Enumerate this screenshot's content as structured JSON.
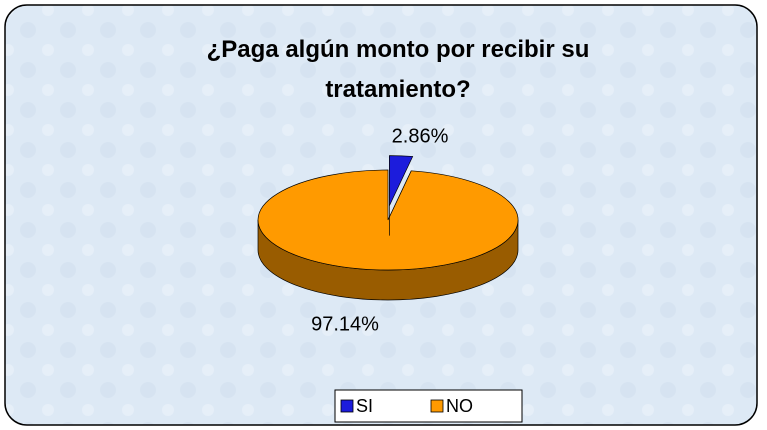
{
  "chart_data": {
    "type": "pie3d",
    "title": "¿Paga algún monto por recibir su tratamiento?",
    "categories": [
      "SI",
      "NO"
    ],
    "values": [
      2.86,
      97.14
    ],
    "value_labels": [
      "2.86%",
      "97.14%"
    ],
    "colors": [
      "#1c1cdc",
      "#ff9a00"
    ],
    "legend": "bottom"
  }
}
